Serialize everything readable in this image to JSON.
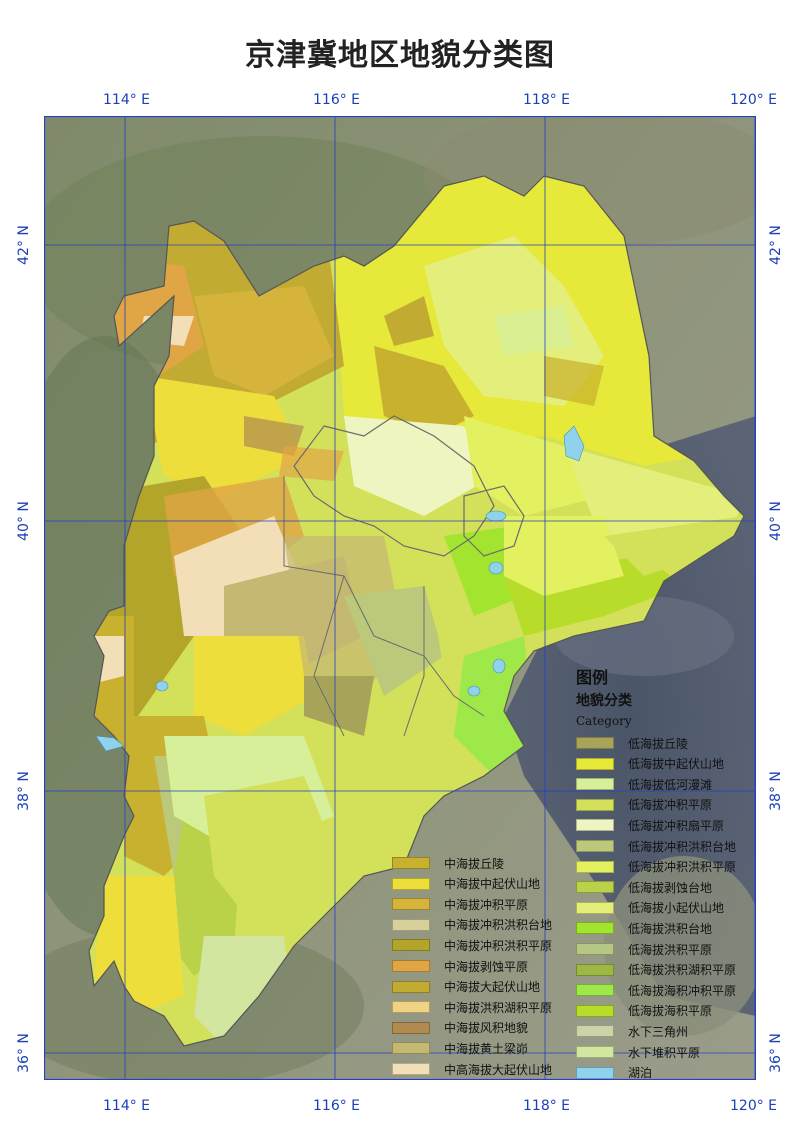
{
  "title": "京津冀地区地貌分类图",
  "coords": {
    "top": [
      "114° E",
      "116° E",
      "118° E",
      "120° E"
    ],
    "bottom": [
      "114° E",
      "116° E",
      "118° E",
      "120° E"
    ],
    "left": [
      "42° N",
      "40° N",
      "38° N",
      "36° N"
    ],
    "right": [
      "42° N",
      "40° N",
      "38° N",
      "36° N"
    ]
  },
  "legend": {
    "heading": "图例",
    "subheading": "地貌分类",
    "category": "Category",
    "right_items": [
      {
        "label": "低海拔丘陵",
        "color": "#a7a45a"
      },
      {
        "label": "低海拔中起伏山地",
        "color": "#e6e83a"
      },
      {
        "label": "低海拔低河漫滩",
        "color": "#d7ef98"
      },
      {
        "label": "低海拔冲积平原",
        "color": "#d2e05a"
      },
      {
        "label": "低海拔冲积扇平原",
        "color": "#eef5c0"
      },
      {
        "label": "低海拔冲积洪积台地",
        "color": "#bcc97a"
      },
      {
        "label": "低海拔冲积洪积平原",
        "color": "#e3f060"
      },
      {
        "label": "低海拔剥蚀台地",
        "color": "#b9d24a"
      },
      {
        "label": "低海拔小起伏山地",
        "color": "#e4ee7a"
      },
      {
        "label": "低海拔洪积台地",
        "color": "#a3e42e"
      },
      {
        "label": "低海拔洪积平原",
        "color": "#b6c684"
      },
      {
        "label": "低海拔洪积湖积平原",
        "color": "#9eb845"
      },
      {
        "label": "低海拔海积冲积平原",
        "color": "#9fe84a"
      },
      {
        "label": "低海拔海积平原",
        "color": "#b8dc2a"
      },
      {
        "label": "水下三角州",
        "color": "#cdd3a8"
      },
      {
        "label": "水下堆积平原",
        "color": "#d3e6a0"
      },
      {
        "label": "湖泊",
        "color": "#8fd2ec"
      }
    ],
    "left_items": [
      {
        "label": "中海拔丘陵",
        "color": "#c8b12e"
      },
      {
        "label": "中海拔中起伏山地",
        "color": "#eede3c"
      },
      {
        "label": "中海拔冲积平原",
        "color": "#d6b33a"
      },
      {
        "label": "中海拔冲积洪积台地",
        "color": "#d8d09a"
      },
      {
        "label": "中海拔冲积洪积平原",
        "color": "#b3a52a"
      },
      {
        "label": "中海拔剥蚀平原",
        "color": "#e0a545"
      },
      {
        "label": "中海拔大起伏山地",
        "color": "#c1ab32"
      },
      {
        "label": "中海拔洪积湖积平原",
        "color": "#f0d284"
      },
      {
        "label": "中海拔风积地貌",
        "color": "#b08a4e"
      },
      {
        "label": "中海拔黄土梁峁",
        "color": "#c4b872"
      },
      {
        "label": "中高海拔大起伏山地",
        "color": "#f2dfb8"
      }
    ]
  }
}
